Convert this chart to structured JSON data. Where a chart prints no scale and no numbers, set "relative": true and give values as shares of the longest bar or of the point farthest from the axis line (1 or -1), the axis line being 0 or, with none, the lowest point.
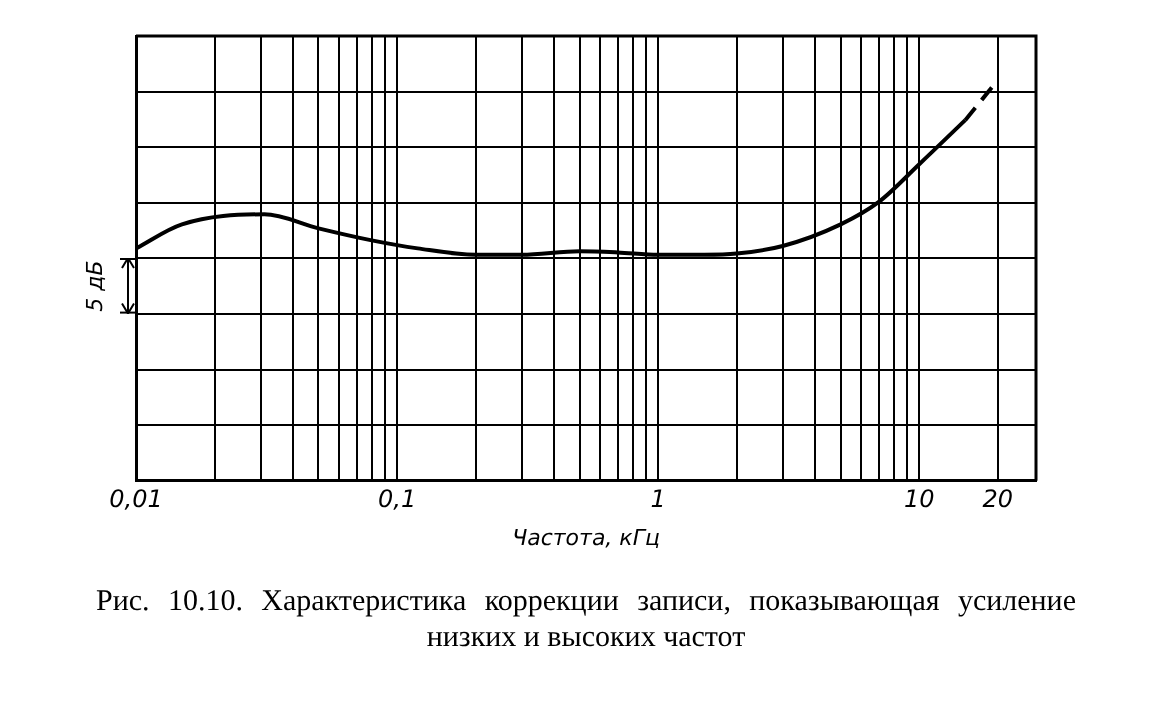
{
  "chart_data": {
    "type": "line",
    "relative": true,
    "xlabel": "Частота, кГц",
    "log": "x",
    "grid": true,
    "marker": "none",
    "xlim": [
      0.01,
      28
    ],
    "xticks": [
      {
        "value": 0.01,
        "label": "0,01"
      },
      {
        "value": 0.02,
        "label": null
      },
      {
        "value": 0.03,
        "label": null
      },
      {
        "value": 0.04,
        "label": null
      },
      {
        "value": 0.05,
        "label": null
      },
      {
        "value": 0.06,
        "label": null
      },
      {
        "value": 0.07,
        "label": null
      },
      {
        "value": 0.08,
        "label": null
      },
      {
        "value": 0.09,
        "label": null
      },
      {
        "value": 0.1,
        "label": "0,1"
      },
      {
        "value": 0.2,
        "label": null
      },
      {
        "value": 0.3,
        "label": null
      },
      {
        "value": 0.4,
        "label": null
      },
      {
        "value": 0.5,
        "label": null
      },
      {
        "value": 0.6,
        "label": null
      },
      {
        "value": 0.7,
        "label": null
      },
      {
        "value": 0.8,
        "label": null
      },
      {
        "value": 0.9,
        "label": null
      },
      1,
      {
        "value": 2,
        "label": null
      },
      {
        "value": 3,
        "label": null
      },
      {
        "value": 4,
        "label": null
      },
      {
        "value": 5,
        "label": null
      },
      {
        "value": 6,
        "label": null
      },
      {
        "value": 7,
        "label": null
      },
      {
        "value": 8,
        "label": null
      },
      {
        "value": 9,
        "label": null
      },
      10,
      20
    ],
    "series": [
      {
        "color": "#000000",
        "line_style": "solid",
        "x": [
          0.01,
          0.015,
          0.031,
          0.05,
          0.08,
          0.12,
          0.2,
          0.3,
          0.5,
          0.7,
          1,
          1.5,
          2,
          3,
          5,
          7,
          10,
          15
        ],
        "values": [
          0.58,
          0.64,
          0.665,
          0.63,
          0.6,
          0.58,
          0.564,
          0.564,
          0.573,
          0.57,
          0.564,
          0.564,
          0.567,
          0.586,
          0.64,
          0.696,
          0.79,
          0.9
        ]
      },
      {
        "color": "#000000",
        "line_style": "dashed",
        "x": [
          15,
          20
        ],
        "values": [
          0.9,
          1.0
        ]
      }
    ],
    "annotations": [
      "5 дБ",
      "Рис. 10.10. Характеристика коррекции записи, показывающая усиление низких и высоких частот"
    ]
  }
}
